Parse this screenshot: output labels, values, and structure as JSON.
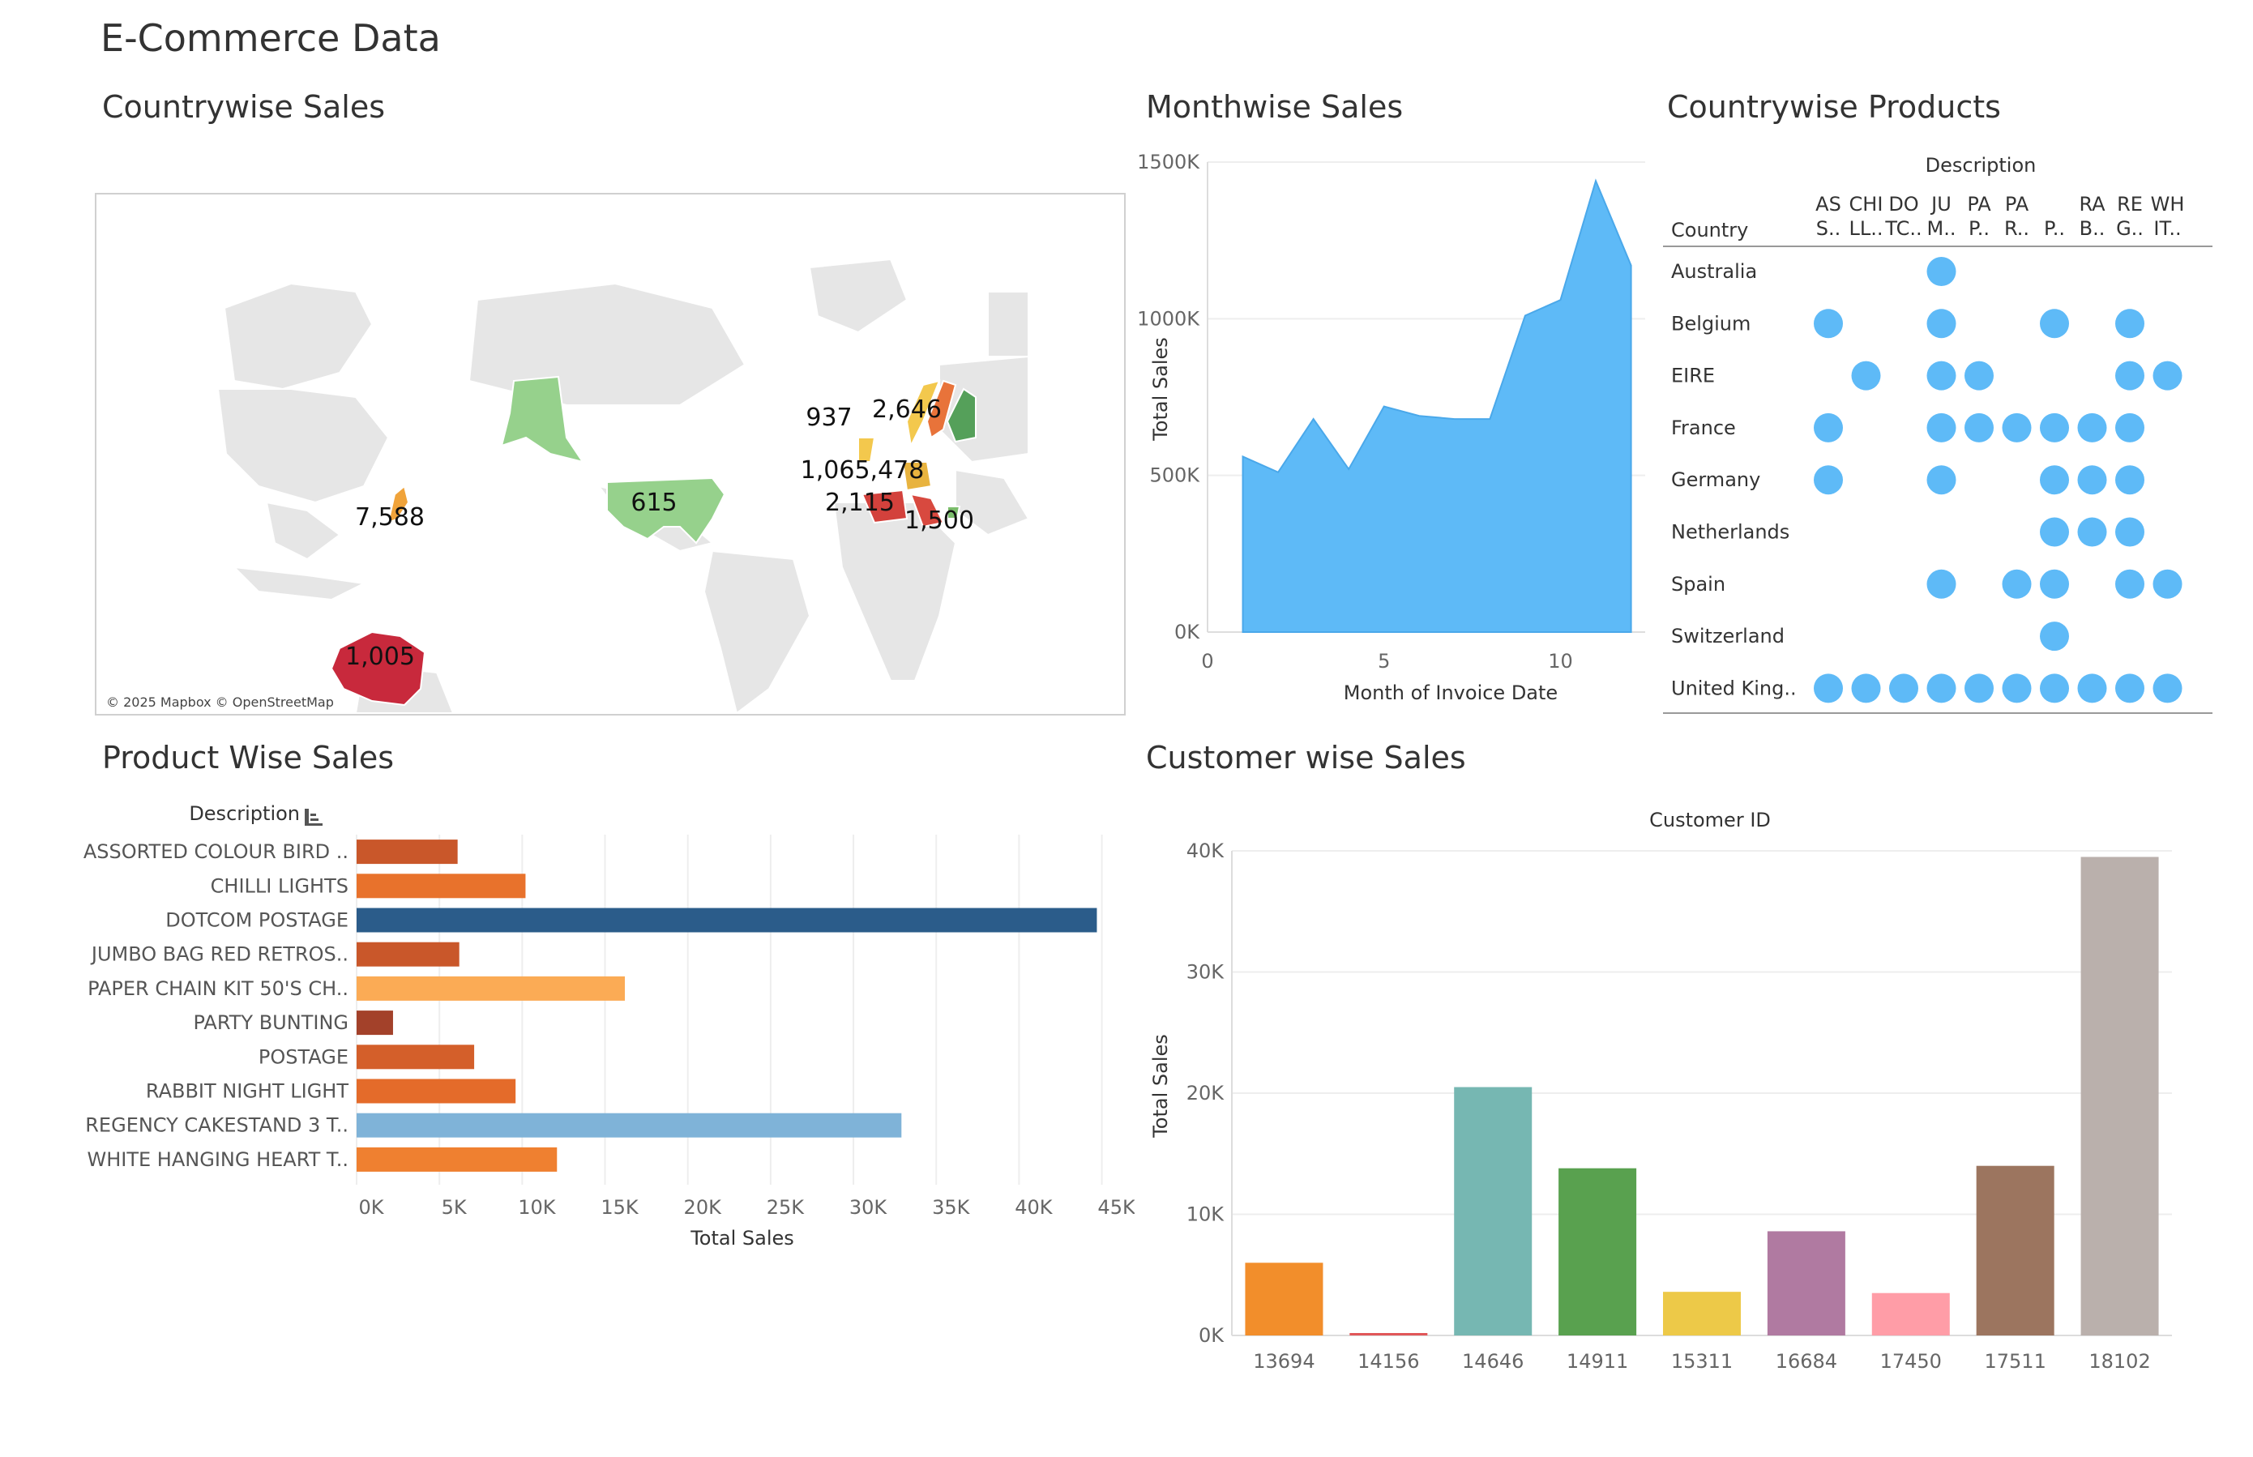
{
  "dashboard": {
    "title": "E-Commerce Data"
  },
  "sections": {
    "countrywise_sales": "Countrywise Sales",
    "monthwise_sales": "Monthwise Sales",
    "countrywise_products": "Countrywise Products",
    "product_wise_sales": "Product Wise Sales",
    "customer_wise_sales": "Customer wise Sales"
  },
  "map": {
    "attribution": "© 2025 Mapbox © OpenStreetMap",
    "labels": [
      "7,588",
      "615",
      "937",
      "2,646",
      "1,065,478",
      "2,115",
      "1,500",
      "1,005"
    ],
    "colors": {
      "australia": "#c8293c",
      "usa": "#96d18c",
      "alaska": "#96d18c",
      "japan": "#f0a33a",
      "sweden": "#55a05a",
      "norway": "#f3c84d",
      "finland": "#55a05a",
      "uk": "#f3c84d",
      "france": "#d3413c",
      "germany": "#e8b33f",
      "italy": "#d8493f",
      "greece": "#7bbd6b"
    }
  },
  "chart_data": [
    {
      "id": "monthwise",
      "type": "area",
      "title": "Monthwise Sales",
      "xlabel": "Month of Invoice Date",
      "ylabel": "Total Sales",
      "x": [
        1,
        2,
        3,
        4,
        5,
        6,
        7,
        8,
        9,
        10,
        11,
        12
      ],
      "values": [
        560000,
        510000,
        680000,
        520000,
        720000,
        690000,
        680000,
        680000,
        1010000,
        1060000,
        1440000,
        1170000
      ],
      "xlim": [
        0,
        12.4
      ],
      "ylim": [
        0,
        1500000
      ],
      "xticks": [
        "0",
        "5",
        "10"
      ],
      "xtick_values": [
        0,
        5,
        10
      ],
      "yticks": [
        "0K",
        "500K",
        "1000K",
        "1500K"
      ],
      "ytick_values": [
        0,
        500000,
        1000000,
        1500000
      ],
      "color": "#5ebaf7"
    },
    {
      "id": "countrywise_products",
      "type": "dot-matrix",
      "title": "Countrywise Products",
      "column_header": "Description",
      "row_header": "Country",
      "columns": [
        [
          "AS",
          "S.."
        ],
        [
          "CHI",
          "LL.."
        ],
        [
          "DO",
          "TC.."
        ],
        [
          "JU",
          "M.."
        ],
        [
          "PA",
          "P.."
        ],
        [
          "PA",
          "R.."
        ],
        [
          "",
          "P.."
        ],
        [
          "RA",
          "B.."
        ],
        [
          "RE",
          "G.."
        ],
        [
          "WH",
          "IT.."
        ]
      ],
      "rows": [
        "Australia",
        "Belgium",
        "EIRE",
        "France",
        "Germany",
        "Netherlands",
        "Spain",
        "Switzerland",
        "United King.."
      ],
      "matrix": [
        [
          0,
          0,
          0,
          1,
          0,
          0,
          0,
          0,
          0,
          0
        ],
        [
          1,
          0,
          0,
          1,
          0,
          0,
          1,
          0,
          1,
          0
        ],
        [
          0,
          1,
          0,
          1,
          1,
          0,
          0,
          0,
          1,
          1
        ],
        [
          1,
          0,
          0,
          1,
          1,
          1,
          1,
          1,
          1,
          0
        ],
        [
          1,
          0,
          0,
          1,
          0,
          0,
          1,
          1,
          1,
          0
        ],
        [
          0,
          0,
          0,
          0,
          0,
          0,
          1,
          1,
          1,
          0
        ],
        [
          0,
          0,
          0,
          1,
          0,
          1,
          1,
          0,
          1,
          1
        ],
        [
          0,
          0,
          0,
          0,
          0,
          0,
          1,
          0,
          0,
          0
        ],
        [
          1,
          1,
          1,
          1,
          1,
          1,
          1,
          1,
          1,
          1
        ]
      ],
      "color": "#5ebaf7"
    },
    {
      "id": "product_wise",
      "type": "bar",
      "orientation": "horizontal",
      "title": "Product Wise Sales",
      "header": "Description",
      "xlabel": "Total Sales",
      "categories": [
        "ASSORTED COLOUR BIRD ..",
        "CHILLI LIGHTS",
        "DOTCOM POSTAGE",
        "JUMBO BAG RED RETROS..",
        "PAPER CHAIN KIT 50'S CH..",
        "PARTY BUNTING",
        "POSTAGE",
        "RABBIT NIGHT LIGHT",
        "REGENCY CAKESTAND 3 T..",
        "WHITE HANGING HEART T.."
      ],
      "values": [
        6100,
        10200,
        44700,
        6200,
        16200,
        2200,
        7100,
        9600,
        32900,
        12100
      ],
      "colors": [
        "#c9572a",
        "#e8722c",
        "#2b5c8a",
        "#c9572a",
        "#fbab55",
        "#a3412a",
        "#d45f2a",
        "#e46b2a",
        "#7fb3d8",
        "#ef8030"
      ],
      "xlim": [
        0,
        46000
      ],
      "xticks": [
        "0K",
        "5K",
        "10K",
        "15K",
        "20K",
        "25K",
        "30K",
        "35K",
        "40K",
        "45K"
      ],
      "xtick_values": [
        0,
        5000,
        10000,
        15000,
        20000,
        25000,
        30000,
        35000,
        40000,
        45000
      ]
    },
    {
      "id": "customer_wise",
      "type": "bar",
      "orientation": "vertical",
      "title": "Customer wise Sales",
      "header": "Customer ID",
      "ylabel": "Total Sales",
      "categories": [
        "13694",
        "14156",
        "14646",
        "14911",
        "15311",
        "16684",
        "17450",
        "17511",
        "18102"
      ],
      "values": [
        6000,
        200,
        20500,
        13800,
        3600,
        8600,
        3500,
        14000,
        39500
      ],
      "colors": [
        "#f28e2b",
        "#e15759",
        "#76b7b2",
        "#59a14f",
        "#edc948",
        "#b07aa1",
        "#ff9da7",
        "#9c755f",
        "#bab0ac"
      ],
      "ylim": [
        0,
        40000
      ],
      "yticks": [
        "0K",
        "10K",
        "20K",
        "30K",
        "40K"
      ],
      "ytick_values": [
        0,
        10000,
        20000,
        30000,
        40000
      ]
    }
  ]
}
